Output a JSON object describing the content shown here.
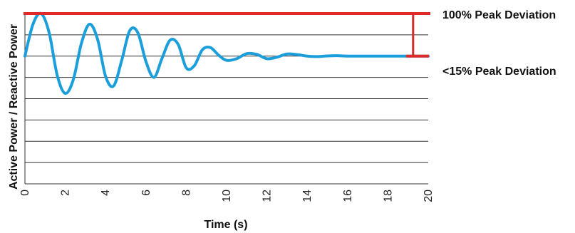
{
  "chart_data": {
    "type": "line",
    "title": "",
    "xlabel": "Time (s)",
    "ylabel": "Active Power / Reactive Power",
    "xlim": [
      0,
      20
    ],
    "ylim": [
      -6,
      2
    ],
    "x_ticks": [
      "0",
      "2",
      "4",
      "6",
      "8",
      "10",
      "12",
      "14",
      "16",
      "18",
      "20"
    ],
    "grid": "horizontal",
    "series": [
      {
        "color": "#1b9fdc",
        "x": [
          0,
          0.4,
          0.8,
          1.2,
          1.6,
          2.0,
          2.4,
          2.8,
          3.2,
          3.6,
          4.0,
          4.4,
          4.8,
          5.2,
          5.6,
          6.0,
          6.4,
          6.8,
          7.2,
          7.6,
          8.0,
          8.4,
          8.8,
          9.2,
          9.6,
          10.0,
          10.5,
          11.0,
          11.5,
          12.0,
          12.5,
          13.0,
          13.5,
          14.0,
          14.5,
          15.0,
          15.5,
          16.0,
          17.0,
          18.0,
          19.0,
          20.0
        ],
        "values": [
          0,
          1.5,
          2.0,
          1.1,
          -0.9,
          -1.75,
          -1.1,
          0.6,
          1.5,
          0.8,
          -0.95,
          -1.4,
          -0.2,
          1.2,
          1.1,
          -0.25,
          -1.0,
          -0.1,
          0.75,
          0.55,
          -0.55,
          -0.45,
          0.3,
          0.4,
          0.05,
          -0.2,
          -0.12,
          0.12,
          0.08,
          -0.12,
          -0.05,
          0.1,
          0.07,
          0.0,
          -0.02,
          0.01,
          0.02,
          0.0,
          0.0,
          0.0,
          0.0,
          0.0
        ]
      }
    ],
    "reference_lines": [
      {
        "label": "100% Peak Deviation",
        "y": 2.0,
        "color": "#e02a2a"
      },
      {
        "label": "<15% Peak Deviation",
        "y": 0.0,
        "color": "#e02a2a"
      }
    ],
    "bracket_color": "#d42b2b"
  }
}
